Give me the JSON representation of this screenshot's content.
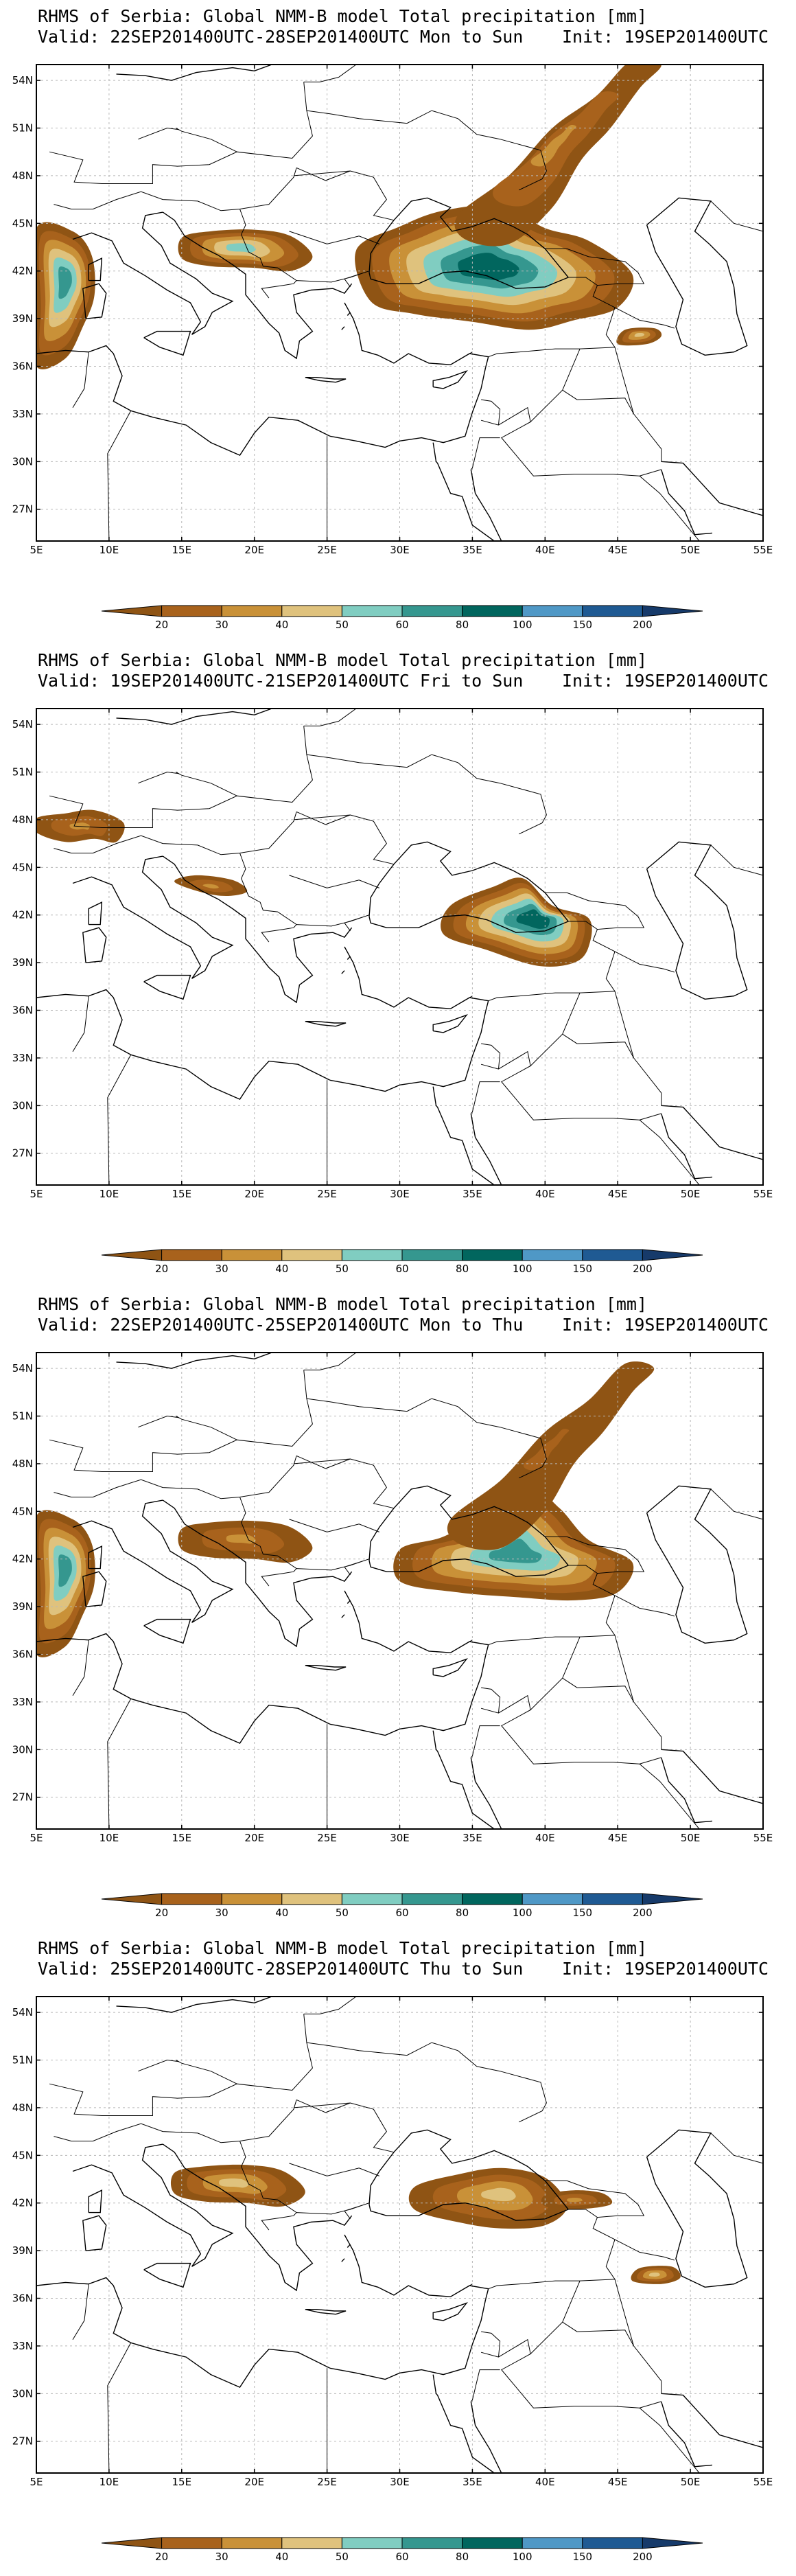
{
  "palette": {
    "levels": [
      "20",
      "30",
      "40",
      "50",
      "60",
      "80",
      "100",
      "150",
      "200"
    ],
    "colors": [
      "#8f5414",
      "#a8621c",
      "#c99138",
      "#dfc27d",
      "#80cdc1",
      "#35978f",
      "#01665e",
      "#4f98c6",
      "#1f5a93",
      "#163a6a"
    ],
    "boundary_color": "#000000",
    "grid_color": "#b8b8b8"
  },
  "axes": {
    "lon_labels": [
      "5E",
      "10E",
      "15E",
      "20E",
      "25E",
      "30E",
      "35E",
      "40E",
      "45E",
      "50E",
      "55E"
    ],
    "lat_labels": [
      "54N",
      "51N",
      "48N",
      "45N",
      "42N",
      "39N",
      "36N",
      "33N",
      "30N",
      "27N"
    ]
  },
  "panels": [
    {
      "title": "RHMS of Serbia: Global NMM-B model Total precipitation [mm]",
      "valid": "Valid: 22SEP201400UTC-28SEP201400UTC Mon to Sun",
      "init": "Init: 19SEP201400UTC",
      "regions": [
        {
          "name": "central-turkey-black-sea",
          "lon": 36,
          "lat": 42.3,
          "level": 6
        },
        {
          "name": "russia-band",
          "lon": 40.5,
          "lat": 50,
          "level": 2
        },
        {
          "name": "italy-west",
          "lon": 7,
          "lat": 41.5,
          "level": 5
        },
        {
          "name": "adriatic-bosnia",
          "lon": 19,
          "lat": 43.5,
          "level": 4
        },
        {
          "name": "sw-iran-caspian",
          "lon": 46.5,
          "lat": 38,
          "level": 3
        }
      ]
    },
    {
      "title": "RHMS of Serbia: Global NMM-B model Total precipitation [mm]",
      "valid": "Valid: 19SEP201400UTC-21SEP201400UTC Fri to Sun",
      "init": "Init: 19SEP201400UTC",
      "regions": [
        {
          "name": "turkey-east",
          "lon": 39.5,
          "lat": 41.8,
          "level": 6
        },
        {
          "name": "alps-west",
          "lon": 8,
          "lat": 47.6,
          "level": 2
        },
        {
          "name": "adriatic-coast",
          "lon": 17,
          "lat": 43.8,
          "level": 2
        }
      ]
    },
    {
      "title": "RHMS of Serbia: Global NMM-B model Total precipitation [mm]",
      "valid": "Valid: 22SEP201400UTC-25SEP201400UTC Mon to Thu",
      "init": "Init: 19SEP201400UTC",
      "regions": [
        {
          "name": "turkey-black-sea",
          "lon": 38,
          "lat": 42.4,
          "level": 5
        },
        {
          "name": "russia-band",
          "lon": 40,
          "lat": 49,
          "level": 1
        },
        {
          "name": "italy-west",
          "lon": 7,
          "lat": 41.5,
          "level": 5
        },
        {
          "name": "adriatic-bosnia",
          "lon": 19,
          "lat": 43.3,
          "level": 2
        }
      ]
    },
    {
      "title": "RHMS of Serbia: Global NMM-B model Total precipitation [mm]",
      "valid": "Valid: 25SEP201400UTC-28SEP201400UTC Thu to Sun",
      "init": "Init: 19SEP201400UTC",
      "regions": [
        {
          "name": "turkey-north",
          "lon": 37,
          "lat": 42.6,
          "level": 3
        },
        {
          "name": "adriatic-bosnia",
          "lon": 18.5,
          "lat": 43.3,
          "level": 3
        },
        {
          "name": "caucasus",
          "lon": 42,
          "lat": 42.2,
          "level": 2
        },
        {
          "name": "iran-south",
          "lon": 47.5,
          "lat": 37.5,
          "level": 3
        }
      ]
    }
  ]
}
